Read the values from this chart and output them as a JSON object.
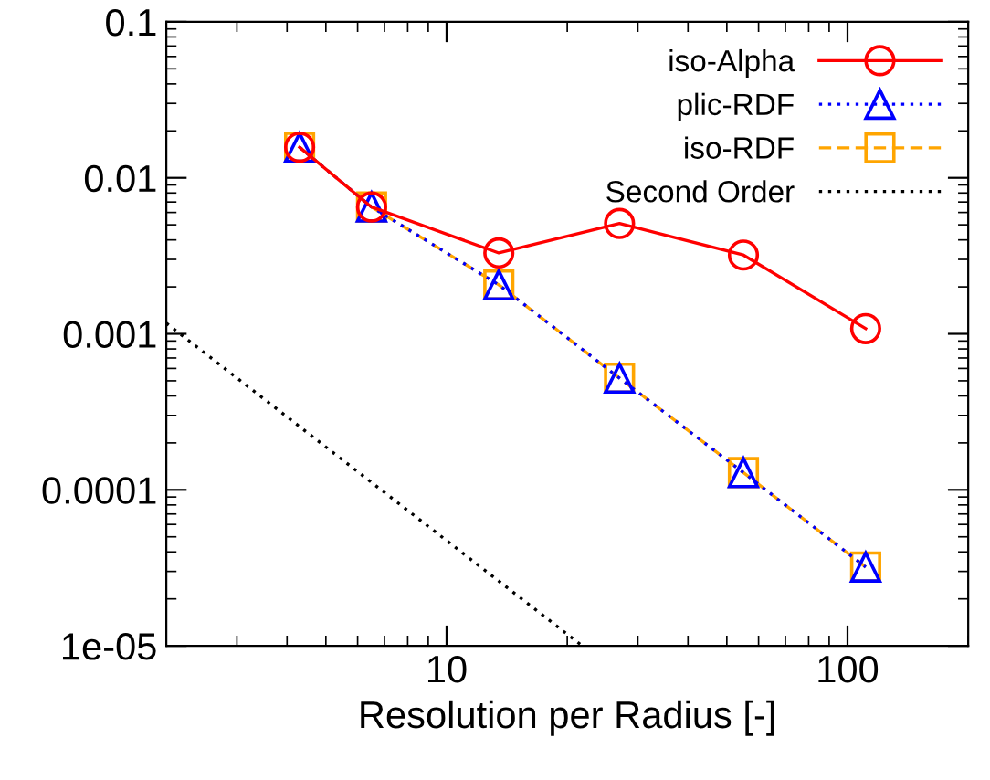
{
  "chart_data": {
    "type": "line",
    "xlabel": "Resolution per Radius [-]",
    "log": "xy",
    "xlim": [
      2,
      200
    ],
    "xticks": [
      10,
      100
    ],
    "ylim": [
      1e-05,
      0.1
    ],
    "yticks": [
      {
        "value": 1e-05,
        "label": "1e-05"
      },
      {
        "value": 0.0001,
        "label": "0.0001"
      },
      {
        "value": 0.001,
        "label": "0.001"
      },
      {
        "value": 0.01,
        "label": "0.01"
      },
      {
        "value": 0.1,
        "label": "0.1"
      }
    ],
    "grid": false,
    "legend": "top right",
    "x": [
      4.3,
      6.5,
      13.5,
      27,
      55,
      111
    ],
    "series": [
      {
        "name": "iso-Alpha",
        "color": "#ff0000",
        "marker": "circle",
        "line_style": "solid",
        "values": [
          0.0157,
          0.0065,
          0.0033,
          0.0051,
          0.0032,
          0.00108
        ]
      },
      {
        "name": "plic-RDF",
        "color": "#0000ff",
        "marker": "triangle",
        "line_style": "dotted",
        "values": [
          0.0157,
          0.0065,
          0.00206,
          0.00052,
          0.000129,
          3.2e-05
        ]
      },
      {
        "name": "iso-RDF",
        "color": "#ffa500",
        "marker": "square",
        "line_style": "dashed",
        "values": [
          0.0157,
          0.0065,
          0.00206,
          0.00052,
          0.000129,
          3.2e-05
        ]
      },
      {
        "name": "Second Order",
        "color": "#000000",
        "marker": "none",
        "line_style": "dotted",
        "x": [
          2,
          21.8
        ],
        "values": [
          0.00117,
          1e-05
        ]
      }
    ]
  }
}
